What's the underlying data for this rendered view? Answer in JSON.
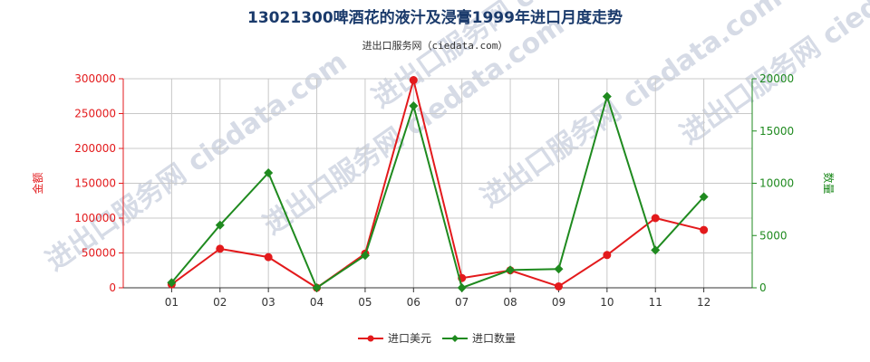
{
  "chart_data": {
    "type": "line",
    "title": "13021300啤酒花的液汁及浸膏1999年进口月度走势",
    "subtitle": "进出口服务网（ciedata.com）",
    "categories": [
      "01",
      "02",
      "03",
      "04",
      "05",
      "06",
      "07",
      "08",
      "09",
      "10",
      "11",
      "12"
    ],
    "y_left": {
      "label": "金额",
      "ylim": [
        0,
        300000
      ],
      "ticks": [
        "0",
        "50000",
        "100000",
        "150000",
        "200000",
        "250000",
        "300000"
      ],
      "color": "#e31a1c"
    },
    "y_right": {
      "label": "数量",
      "ylim": [
        0,
        20000
      ],
      "ticks": [
        "0",
        "5000",
        "10000",
        "15000",
        "20000"
      ],
      "color": "#1f8a1f"
    },
    "series": [
      {
        "name": "进口美元",
        "axis": "left",
        "color": "#e31a1c",
        "marker": "circle",
        "values": [
          5000,
          56000,
          44000,
          0,
          49000,
          298000,
          14000,
          25000,
          2000,
          47000,
          100000,
          83000
        ]
      },
      {
        "name": "进口数量",
        "axis": "right",
        "color": "#1f8a1f",
        "marker": "diamond",
        "values": [
          500,
          6000,
          11000,
          0,
          3100,
          17400,
          0,
          1700,
          1800,
          18300,
          3600,
          8700
        ]
      }
    ],
    "grid": true,
    "legend_position": "bottom-center",
    "watermark": "进出口服务网 ciedata.com"
  }
}
